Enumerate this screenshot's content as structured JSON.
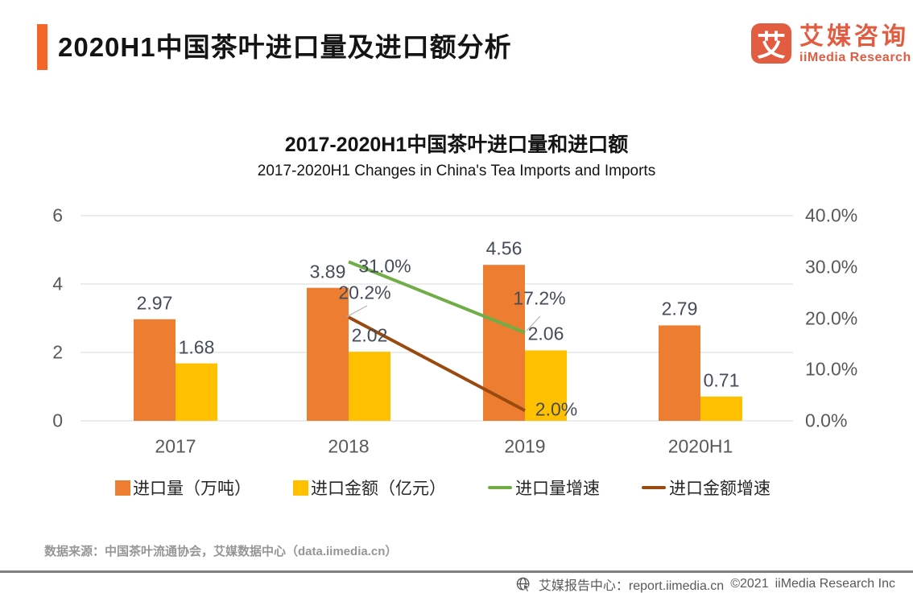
{
  "header": {
    "title": "2020H1中国茶叶进口量及进口额分析"
  },
  "logo": {
    "glyph": "艾",
    "name_cn": "艾媒咨询",
    "name_en": "iiMedia Research"
  },
  "chart_data": {
    "type": "bar+line combo",
    "title": "2017-2020H1中国茶叶进口量和进口额",
    "subtitle": "2017-2020H1 Changes in China's Tea Imports and Imports",
    "categories": [
      "2017",
      "2018",
      "2019",
      "2020H1"
    ],
    "bar_series": [
      {
        "key": "import-volume",
        "name": "进口量（万吨）",
        "color": "#ED7D31",
        "values": [
          2.97,
          3.89,
          4.56,
          2.79
        ],
        "labels": [
          "2.97",
          "3.89",
          "4.56",
          "2.79"
        ]
      },
      {
        "key": "import-value",
        "name": "进口金额（亿元）",
        "color": "#FFC000",
        "values": [
          1.68,
          2.02,
          2.06,
          0.71
        ],
        "labels": [
          "1.68",
          "2.02",
          "2.06",
          "0.71"
        ]
      }
    ],
    "line_series": [
      {
        "key": "volume-growth",
        "name": "进口量增速",
        "color": "#70AD47",
        "points": [
          {
            "category": "2018",
            "value": 31.0,
            "label": "31.0%"
          },
          {
            "category": "2019",
            "value": 17.2,
            "label": "17.2%"
          }
        ]
      },
      {
        "key": "value-growth",
        "name": "进口金额增速",
        "color": "#9A4A0E",
        "points": [
          {
            "category": "2018",
            "value": 20.2,
            "label": "20.2%"
          },
          {
            "category": "2019",
            "value": 2.0,
            "label": "2.0%"
          }
        ]
      }
    ],
    "left_axis": {
      "min": 0,
      "max": 6,
      "tick_values": [
        0,
        2,
        4,
        6
      ],
      "tick_labels": [
        "0",
        "2",
        "4",
        "6"
      ]
    },
    "right_axis": {
      "min": 0,
      "max": 40,
      "tick_values": [
        0,
        10,
        20,
        30,
        40
      ],
      "tick_labels": [
        "0.0%",
        "10.0%",
        "20.0%",
        "30.0%",
        "40.0%"
      ]
    },
    "grid": true,
    "legend_position": "bottom"
  },
  "source": {
    "text": "数据来源：中国茶叶流通协会，艾媒数据中心（data.iimedia.cn）"
  },
  "footer": {
    "report_center": "艾媒报告中心：report.iimedia.cn",
    "copyright": "©2021",
    "company": "iiMedia Research  Inc"
  }
}
